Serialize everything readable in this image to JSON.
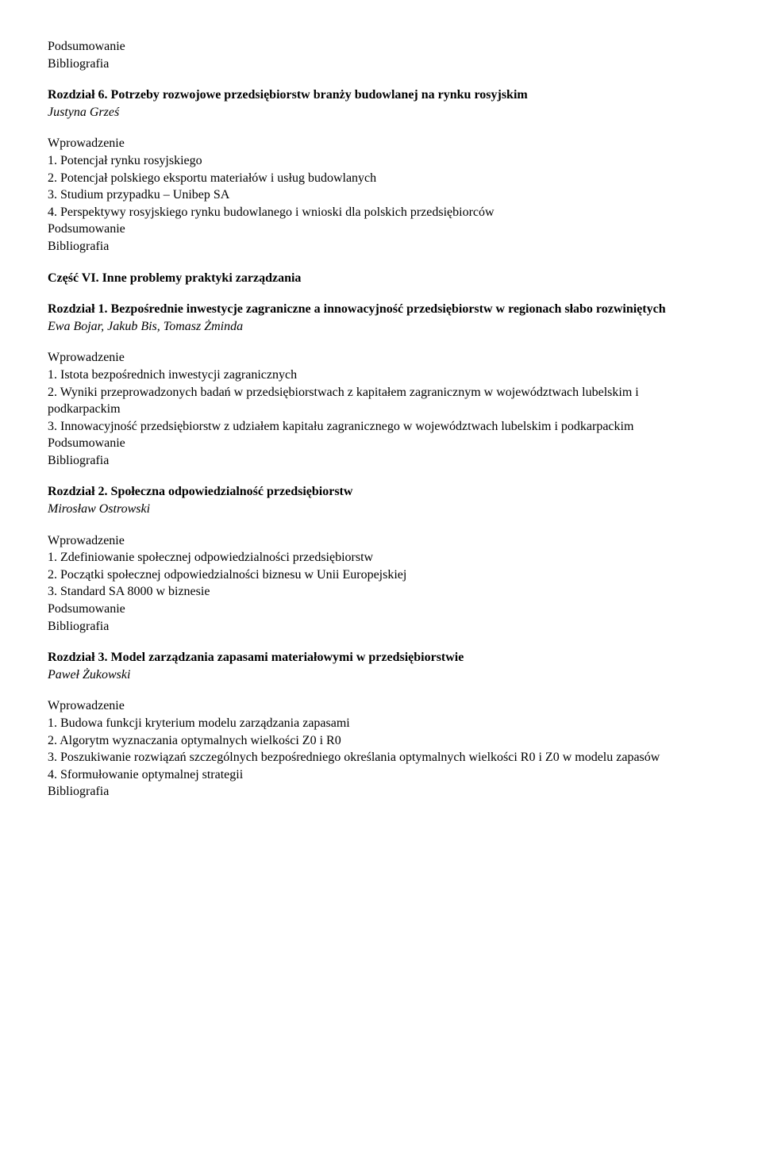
{
  "doc": {
    "font_family": "Times New Roman",
    "font_size_pt": 12,
    "text_color": "#000000",
    "background_color": "#ffffff"
  },
  "top": [
    "Podsumowanie",
    "Bibliografia"
  ],
  "section6": {
    "title_prefix": "Rozdział 6.",
    "title_rest": " Potrzeby rozwojowe przedsiębiorstw branży budowlanej na rynku rosyjskim",
    "author": "Justyna Grześ",
    "intro": "Wprowadzenie",
    "items": [
      "1. Potencjał rynku rosyjskiego",
      "2. Potencjał polskiego eksportu materiałów i usług budowlanych",
      "3. Studium przypadku – Unibep SA",
      "4. Perspektywy rosyjskiego rynku budowlanego i wnioski dla polskich przedsiębiorców"
    ],
    "footer": [
      "Podsumowanie",
      "Bibliografia"
    ]
  },
  "part6": "Część VI. Inne problemy praktyki zarządzania",
  "ch1": {
    "title_prefix": "Rozdział 1.",
    "title_rest": " Bezpośrednie inwestycje zagraniczne a innowacyjność przedsiębiorstw w regionach słabo rozwiniętych",
    "author": "Ewa Bojar, Jakub Bis, Tomasz Żminda",
    "intro": "Wprowadzenie",
    "items": [
      "1. Istota bezpośrednich inwestycji zagranicznych",
      "2. Wyniki przeprowadzonych badań w przedsiębiorstwach z kapitałem zagranicznym w województwach lubelskim i podkarpackim",
      "3. Innowacyjność przedsiębiorstw z udziałem kapitału zagranicznego w województwach lubelskim i podkarpackim"
    ],
    "footer": [
      "Podsumowanie",
      "Bibliografia"
    ]
  },
  "ch2": {
    "title_prefix": "Rozdział 2.",
    "title_rest": " Społeczna odpowiedzialność przedsiębiorstw",
    "author": "Mirosław Ostrowski",
    "intro": "Wprowadzenie",
    "items": [
      "1. Zdefiniowanie społecznej odpowiedzialności przedsiębiorstw",
      "2. Początki społecznej odpowiedzialności biznesu w Unii Europejskiej",
      "3. Standard SA 8000 w biznesie"
    ],
    "footer": [
      "Podsumowanie",
      "Bibliografia"
    ]
  },
  "ch3": {
    "title_prefix": "Rozdział 3.",
    "title_rest": " Model zarządzania zapasami materiałowymi w przedsiębiorstwie",
    "author": "Paweł Żukowski",
    "intro": "Wprowadzenie",
    "items": [
      "1. Budowa funkcji kryterium modelu zarządzania zapasami",
      "2. Algorytm wyznaczania optymalnych wielkości Z0 i R0",
      "3. Poszukiwanie rozwiązań szczególnych bezpośredniego określania optymalnych wielkości R0 i Z0 w modelu zapasów",
      "4. Sformułowanie optymalnej strategii"
    ],
    "footer": [
      "Bibliografia"
    ]
  }
}
